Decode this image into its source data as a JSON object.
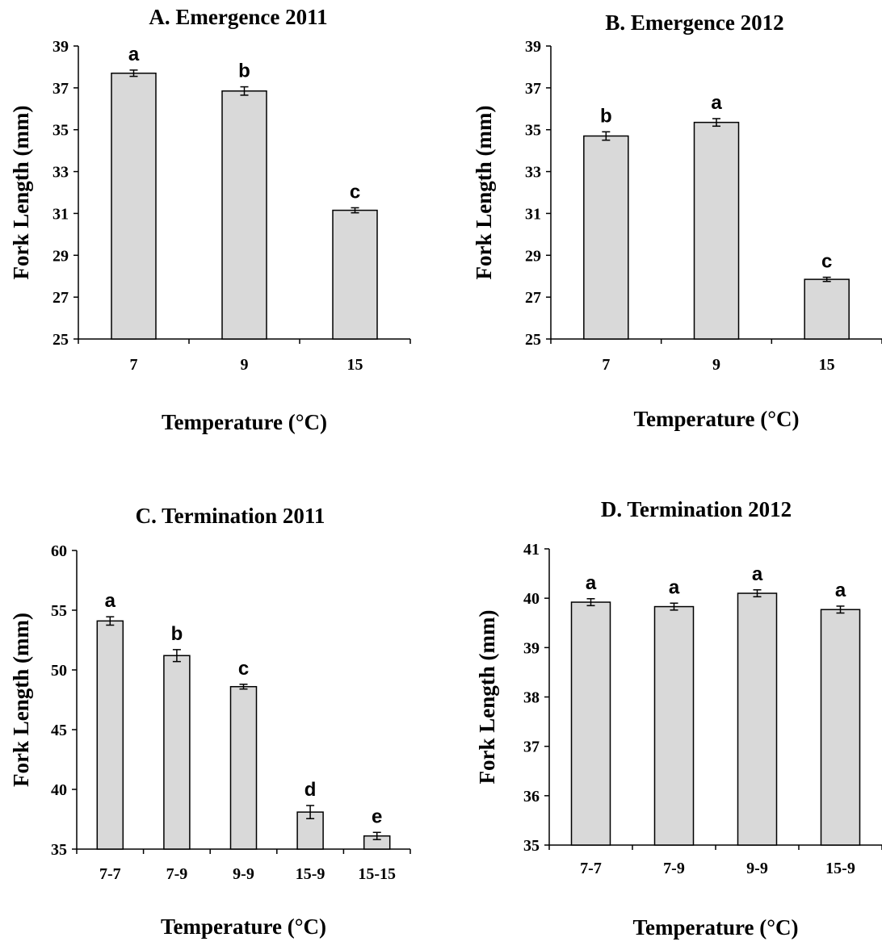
{
  "chart_data": [
    {
      "type": "bar",
      "title": "A. Emergence 2011",
      "xlabel": "Temperature (°C)",
      "ylabel": "Fork Length (mm)",
      "ylim": [
        25,
        39
      ],
      "yticks": [
        25,
        27,
        29,
        31,
        33,
        35,
        37,
        39
      ],
      "categories": [
        "7",
        "9",
        "15"
      ],
      "values": [
        37.7,
        36.85,
        31.15
      ],
      "errors": [
        0.15,
        0.2,
        0.12
      ],
      "labels": [
        "a",
        "b",
        "c"
      ],
      "bar_color": "#d9d9d9"
    },
    {
      "type": "bar",
      "title": "B. Emergence 2012",
      "xlabel": "Temperature (°C)",
      "ylabel": "Fork Length (mm)",
      "ylim": [
        25,
        39
      ],
      "yticks": [
        25,
        27,
        29,
        31,
        33,
        35,
        37,
        39
      ],
      "categories": [
        "7",
        "9",
        "15"
      ],
      "values": [
        34.7,
        35.35,
        27.85
      ],
      "errors": [
        0.2,
        0.18,
        0.1
      ],
      "labels": [
        "b",
        "a",
        "c"
      ],
      "bar_color": "#d9d9d9"
    },
    {
      "type": "bar",
      "title": "C. Termination 2011",
      "xlabel": "Temperature (°C)",
      "ylabel": "Fork Length (mm)",
      "ylim": [
        35,
        60
      ],
      "yticks": [
        35,
        40,
        45,
        50,
        55,
        60
      ],
      "categories": [
        "7-7",
        "7-9",
        "9-9",
        "15-9",
        "15-15"
      ],
      "values": [
        54.1,
        51.2,
        48.6,
        38.1,
        36.1
      ],
      "errors": [
        0.35,
        0.5,
        0.2,
        0.55,
        0.3
      ],
      "labels": [
        "a",
        "b",
        "c",
        "d",
        "e"
      ],
      "bar_color": "#d9d9d9"
    },
    {
      "type": "bar",
      "title": "D. Termination 2012",
      "xlabel": "Temperature (°C)",
      "ylabel": "Fork Length (mm)",
      "ylim": [
        35,
        41
      ],
      "yticks": [
        35,
        36,
        37,
        38,
        39,
        40,
        41
      ],
      "categories": [
        "7-7",
        "7-9",
        "9-9",
        "15-9"
      ],
      "values": [
        39.92,
        39.83,
        40.1,
        39.77
      ],
      "errors": [
        0.07,
        0.07,
        0.07,
        0.07
      ],
      "labels": [
        "a",
        "a",
        "a",
        "a"
      ],
      "bar_color": "#d9d9d9"
    }
  ]
}
